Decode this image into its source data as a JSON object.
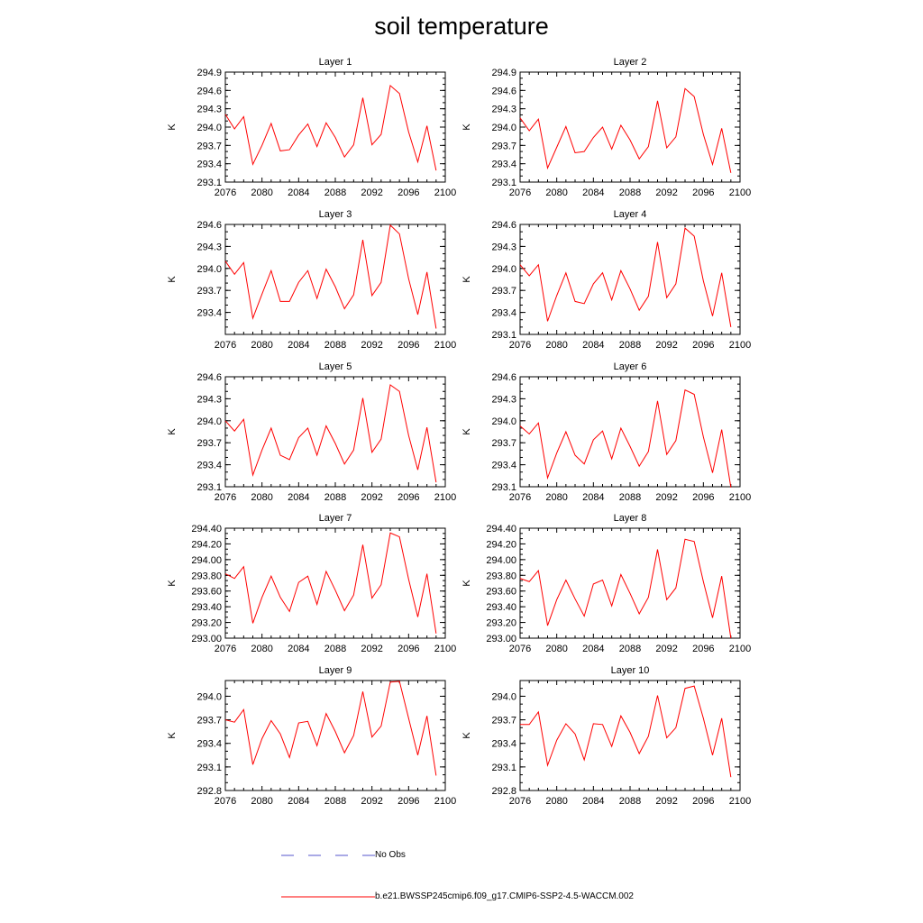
{
  "title": "soil temperature",
  "legend": {
    "obs_label": "No Obs",
    "obs_color": "#5555cc",
    "model_label": "b.e21.BWSSP245cmip6.f09_g17.CMIP6-SSP2-4.5-WACCM.002",
    "model_color": "#ff0000"
  },
  "chart_data": [
    {
      "type": "line",
      "title": "Layer 1",
      "ylabel": "K",
      "xlim": [
        2076,
        2100
      ],
      "ylim": [
        293.1,
        294.9
      ],
      "xticks": [
        "2076",
        "2080",
        "2084",
        "2088",
        "2092",
        "2096",
        "2100"
      ],
      "yticks": [
        "293.1",
        "293.4",
        "293.7",
        "294.0",
        "294.3",
        "294.6",
        "294.9"
      ],
      "x": [
        2076,
        2077,
        2078,
        2079,
        2080,
        2081,
        2082,
        2083,
        2084,
        2085,
        2086,
        2087,
        2088,
        2089,
        2090,
        2091,
        2092,
        2093,
        2094,
        2095,
        2096,
        2097,
        2098,
        2099
      ],
      "series": [
        {
          "values": [
            294.21,
            293.97,
            294.17,
            293.39,
            293.7,
            294.06,
            293.61,
            293.63,
            293.87,
            294.05,
            293.68,
            294.07,
            293.83,
            293.51,
            293.71,
            294.48,
            293.71,
            293.88,
            294.68,
            294.55,
            293.92,
            293.43,
            294.02,
            293.29
          ]
        }
      ]
    },
    {
      "type": "line",
      "title": "Layer 2",
      "ylabel": "K",
      "xlim": [
        2076,
        2100
      ],
      "ylim": [
        293.1,
        294.9
      ],
      "xticks": [
        "2076",
        "2080",
        "2084",
        "2088",
        "2092",
        "2096",
        "2100"
      ],
      "yticks": [
        "293.1",
        "293.4",
        "293.7",
        "294.0",
        "294.3",
        "294.6",
        "294.9"
      ],
      "x": [
        2076,
        2077,
        2078,
        2079,
        2080,
        2081,
        2082,
        2083,
        2084,
        2085,
        2086,
        2087,
        2088,
        2089,
        2090,
        2091,
        2092,
        2093,
        2094,
        2095,
        2096,
        2097,
        2098,
        2099
      ],
      "series": [
        {
          "values": [
            294.15,
            293.94,
            294.13,
            293.33,
            293.67,
            294.01,
            293.58,
            293.6,
            293.83,
            294.0,
            293.64,
            294.03,
            293.79,
            293.48,
            293.68,
            294.43,
            293.66,
            293.84,
            294.63,
            294.5,
            293.88,
            293.39,
            293.98,
            293.25
          ]
        }
      ]
    },
    {
      "type": "line",
      "title": "Layer 3",
      "ylabel": "K",
      "xlim": [
        2076,
        2100
      ],
      "ylim": [
        293.1,
        294.6
      ],
      "xticks": [
        "2076",
        "2080",
        "2084",
        "2088",
        "2092",
        "2096",
        "2100"
      ],
      "yticks": [
        "293.4",
        "293.7",
        "294.0",
        "294.3",
        "294.6"
      ],
      "x": [
        2076,
        2077,
        2078,
        2079,
        2080,
        2081,
        2082,
        2083,
        2084,
        2085,
        2086,
        2087,
        2088,
        2089,
        2090,
        2091,
        2092,
        2093,
        2094,
        2095,
        2096,
        2097,
        2098,
        2099
      ],
      "series": [
        {
          "values": [
            294.1,
            293.92,
            294.08,
            293.32,
            293.65,
            293.97,
            293.55,
            293.55,
            293.81,
            293.97,
            293.59,
            293.99,
            293.75,
            293.45,
            293.64,
            294.39,
            293.63,
            293.81,
            294.59,
            294.47,
            293.86,
            293.37,
            293.95,
            293.18
          ]
        }
      ]
    },
    {
      "type": "line",
      "title": "Layer 4",
      "ylabel": "K",
      "xlim": [
        2076,
        2100
      ],
      "ylim": [
        293.1,
        294.6
      ],
      "xticks": [
        "2076",
        "2080",
        "2084",
        "2088",
        "2092",
        "2096",
        "2100"
      ],
      "yticks": [
        "293.1",
        "293.4",
        "293.7",
        "294.0",
        "294.3",
        "294.6"
      ],
      "x": [
        2076,
        2077,
        2078,
        2079,
        2080,
        2081,
        2082,
        2083,
        2084,
        2085,
        2086,
        2087,
        2088,
        2089,
        2090,
        2091,
        2092,
        2093,
        2094,
        2095,
        2096,
        2097,
        2098,
        2099
      ],
      "series": [
        {
          "values": [
            294.05,
            293.9,
            294.05,
            293.28,
            293.63,
            293.94,
            293.55,
            293.52,
            293.79,
            293.94,
            293.57,
            293.97,
            293.72,
            293.43,
            293.62,
            294.36,
            293.6,
            293.79,
            294.55,
            294.44,
            293.83,
            293.35,
            293.94,
            293.2
          ]
        }
      ]
    },
    {
      "type": "line",
      "title": "Layer 5",
      "ylabel": "K",
      "xlim": [
        2076,
        2100
      ],
      "ylim": [
        293.1,
        294.6
      ],
      "xticks": [
        "2076",
        "2080",
        "2084",
        "2088",
        "2092",
        "2096",
        "2100"
      ],
      "yticks": [
        "293.1",
        "293.4",
        "293.7",
        "294.0",
        "294.3",
        "294.6"
      ],
      "x": [
        2076,
        2077,
        2078,
        2079,
        2080,
        2081,
        2082,
        2083,
        2084,
        2085,
        2086,
        2087,
        2088,
        2089,
        2090,
        2091,
        2092,
        2093,
        2094,
        2095,
        2096,
        2097,
        2098,
        2099
      ],
      "series": [
        {
          "values": [
            294.0,
            293.86,
            294.02,
            293.26,
            293.6,
            293.9,
            293.53,
            293.47,
            293.77,
            293.9,
            293.53,
            293.93,
            293.69,
            293.41,
            293.6,
            294.31,
            293.57,
            293.75,
            294.49,
            294.4,
            293.8,
            293.33,
            293.91,
            293.16
          ]
        }
      ]
    },
    {
      "type": "line",
      "title": "Layer 6",
      "ylabel": "K",
      "xlim": [
        2076,
        2100
      ],
      "ylim": [
        293.1,
        294.6
      ],
      "xticks": [
        "2076",
        "2080",
        "2084",
        "2088",
        "2092",
        "2096",
        "2100"
      ],
      "yticks": [
        "293.1",
        "293.4",
        "293.7",
        "294.0",
        "294.3",
        "294.6"
      ],
      "x": [
        2076,
        2077,
        2078,
        2079,
        2080,
        2081,
        2082,
        2083,
        2084,
        2085,
        2086,
        2087,
        2088,
        2089,
        2090,
        2091,
        2092,
        2093,
        2094,
        2095,
        2096,
        2097,
        2098,
        2099
      ],
      "series": [
        {
          "values": [
            293.93,
            293.82,
            293.97,
            293.22,
            293.56,
            293.85,
            293.53,
            293.41,
            293.74,
            293.86,
            293.48,
            293.9,
            293.65,
            293.38,
            293.58,
            294.27,
            293.54,
            293.73,
            294.42,
            294.36,
            293.78,
            293.29,
            293.88,
            293.09
          ]
        }
      ]
    },
    {
      "type": "line",
      "title": "Layer 7",
      "ylabel": "K",
      "xlim": [
        2076,
        2100
      ],
      "ylim": [
        293.0,
        294.4
      ],
      "xticks": [
        "2076",
        "2080",
        "2084",
        "2088",
        "2092",
        "2096",
        "2100"
      ],
      "yticks": [
        "293.00",
        "293.20",
        "293.40",
        "293.60",
        "293.80",
        "294.00",
        "294.20",
        "294.40"
      ],
      "x": [
        2076,
        2077,
        2078,
        2079,
        2080,
        2081,
        2082,
        2083,
        2084,
        2085,
        2086,
        2087,
        2088,
        2089,
        2090,
        2091,
        2092,
        2093,
        2094,
        2095,
        2096,
        2097,
        2098,
        2099
      ],
      "series": [
        {
          "values": [
            293.82,
            293.76,
            293.91,
            293.19,
            293.52,
            293.79,
            293.52,
            293.34,
            293.71,
            293.79,
            293.43,
            293.85,
            293.61,
            293.35,
            293.55,
            294.19,
            293.51,
            293.68,
            294.34,
            294.29,
            293.75,
            293.27,
            293.82,
            293.06
          ]
        }
      ]
    },
    {
      "type": "line",
      "title": "Layer 8",
      "ylabel": "K",
      "xlim": [
        2076,
        2100
      ],
      "ylim": [
        293.0,
        294.4
      ],
      "xticks": [
        "2076",
        "2080",
        "2084",
        "2088",
        "2092",
        "2096",
        "2100"
      ],
      "yticks": [
        "293.00",
        "293.20",
        "293.40",
        "293.60",
        "293.80",
        "294.00",
        "294.20",
        "294.40"
      ],
      "x": [
        2076,
        2077,
        2078,
        2079,
        2080,
        2081,
        2082,
        2083,
        2084,
        2085,
        2086,
        2087,
        2088,
        2089,
        2090,
        2091,
        2092,
        2093,
        2094,
        2095,
        2096,
        2097,
        2098,
        2099
      ],
      "series": [
        {
          "values": [
            293.76,
            293.72,
            293.86,
            293.16,
            293.49,
            293.74,
            293.5,
            293.28,
            293.69,
            293.74,
            293.41,
            293.81,
            293.57,
            293.31,
            293.52,
            294.13,
            293.49,
            293.64,
            294.26,
            294.23,
            293.72,
            293.26,
            293.79,
            293.0
          ]
        }
      ]
    },
    {
      "type": "line",
      "title": "Layer 9",
      "ylabel": "K",
      "xlim": [
        2076,
        2100
      ],
      "ylim": [
        292.8,
        294.2
      ],
      "xticks": [
        "2076",
        "2080",
        "2084",
        "2088",
        "2092",
        "2096",
        "2100"
      ],
      "yticks": [
        "292.8",
        "293.1",
        "293.4",
        "293.7",
        "294.0"
      ],
      "x": [
        2076,
        2077,
        2078,
        2079,
        2080,
        2081,
        2082,
        2083,
        2084,
        2085,
        2086,
        2087,
        2088,
        2089,
        2090,
        2091,
        2092,
        2093,
        2094,
        2095,
        2096,
        2097,
        2098,
        2099
      ],
      "series": [
        {
          "values": [
            293.7,
            293.67,
            293.83,
            293.13,
            293.46,
            293.69,
            293.52,
            293.22,
            293.66,
            293.68,
            293.37,
            293.78,
            293.55,
            293.28,
            293.5,
            294.06,
            293.48,
            293.62,
            294.18,
            294.19,
            293.72,
            293.25,
            293.75,
            292.99
          ]
        }
      ]
    },
    {
      "type": "line",
      "title": "Layer 10",
      "ylabel": "K",
      "xlim": [
        2076,
        2100
      ],
      "ylim": [
        292.8,
        294.2
      ],
      "xticks": [
        "2076",
        "2080",
        "2084",
        "2088",
        "2092",
        "2096",
        "2100"
      ],
      "yticks": [
        "292.8",
        "293.1",
        "293.4",
        "293.7",
        "294.0"
      ],
      "x": [
        2076,
        2077,
        2078,
        2079,
        2080,
        2081,
        2082,
        2083,
        2084,
        2085,
        2086,
        2087,
        2088,
        2089,
        2090,
        2091,
        2092,
        2093,
        2094,
        2095,
        2096,
        2097,
        2098,
        2099
      ],
      "series": [
        {
          "values": [
            293.64,
            293.64,
            293.8,
            293.12,
            293.44,
            293.65,
            293.52,
            293.19,
            293.65,
            293.64,
            293.36,
            293.75,
            293.54,
            293.27,
            293.49,
            294.01,
            293.47,
            293.6,
            294.1,
            294.13,
            293.72,
            293.25,
            293.72,
            292.97
          ]
        }
      ]
    }
  ]
}
